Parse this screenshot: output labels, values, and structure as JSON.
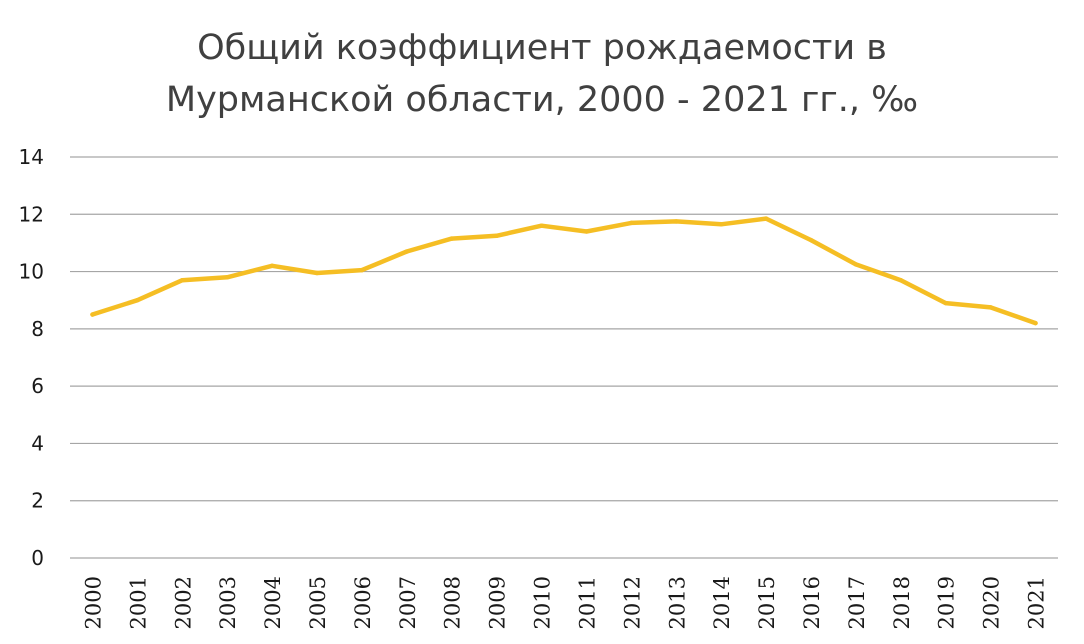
{
  "chart_data": {
    "type": "line",
    "title_lines": [
      "Общий коэффициент рождаемости в",
      "Мурманской области, 2000 - 2021 гг., ‰"
    ],
    "xlabel": "",
    "ylabel": "",
    "ylim": [
      0,
      14
    ],
    "yticks": [
      0,
      2,
      4,
      6,
      8,
      10,
      12,
      14
    ],
    "grid": true,
    "legend": "none",
    "categories": [
      "2000",
      "2001",
      "2002",
      "2003",
      "2004",
      "2005",
      "2006",
      "2007",
      "2008",
      "2009",
      "2010",
      "2011",
      "2012",
      "2013",
      "2014",
      "2015",
      "2016",
      "2017",
      "2018",
      "2019",
      "2020",
      "2021"
    ],
    "series": [
      {
        "values": [
          8.5,
          9.0,
          9.7,
          9.8,
          10.2,
          9.95,
          10.05,
          10.7,
          11.15,
          11.25,
          11.6,
          11.4,
          11.7,
          11.75,
          11.65,
          11.85,
          11.1,
          10.25,
          9.7,
          8.9,
          8.75,
          8.2
        ],
        "color": "#F5BE24"
      }
    ],
    "colors": {
      "grid": "#A6A6A6",
      "axis_text": "#1a1a1a",
      "title": "#404040"
    }
  }
}
